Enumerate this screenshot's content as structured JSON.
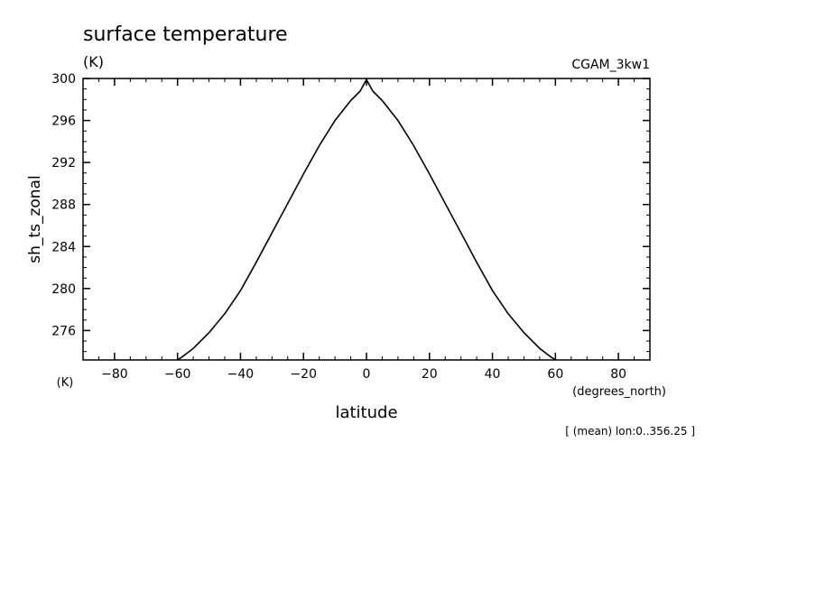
{
  "chart_data": {
    "type": "line",
    "title": "surface temperature",
    "units_label": "(K)",
    "dataset_label": "CGAM_3kw1",
    "ylabel": "sh_ts_zonal",
    "y_unit_label": "(K)",
    "xlabel": "latitude",
    "x_unit_label": "(degrees_north)",
    "footnote": "[ (mean) lon:0..356.25 ]",
    "xlim": [
      -90,
      90
    ],
    "ylim": [
      273.2,
      300
    ],
    "xticks": [
      -80,
      -60,
      -40,
      -20,
      0,
      20,
      40,
      60,
      80
    ],
    "xtick_labels": [
      "-80",
      "-60",
      "-40",
      "-20",
      "0",
      "20",
      "40",
      "60",
      "80"
    ],
    "yticks": [
      276,
      280,
      284,
      288,
      292,
      296,
      300
    ],
    "ytick_labels": [
      "276",
      "280",
      "284",
      "288",
      "292",
      "296",
      "300"
    ],
    "grid": false,
    "series": [
      {
        "color": "#000000",
        "x": [
          -60,
          -58,
          -55,
          -50,
          -45,
          -40,
          -35,
          -30,
          -25,
          -20,
          -15,
          -10,
          -5,
          -2,
          0,
          2,
          5,
          10,
          15,
          20,
          25,
          30,
          35,
          40,
          45,
          50,
          55,
          58,
          60
        ],
        "y": [
          273.2,
          273.6,
          274.3,
          275.8,
          277.6,
          279.8,
          282.5,
          285.3,
          288.1,
          290.9,
          293.6,
          296.0,
          297.9,
          298.8,
          299.9,
          298.8,
          297.9,
          296.0,
          293.6,
          290.9,
          288.1,
          285.3,
          282.5,
          279.8,
          277.6,
          275.8,
          274.3,
          273.6,
          273.2
        ]
      }
    ]
  }
}
